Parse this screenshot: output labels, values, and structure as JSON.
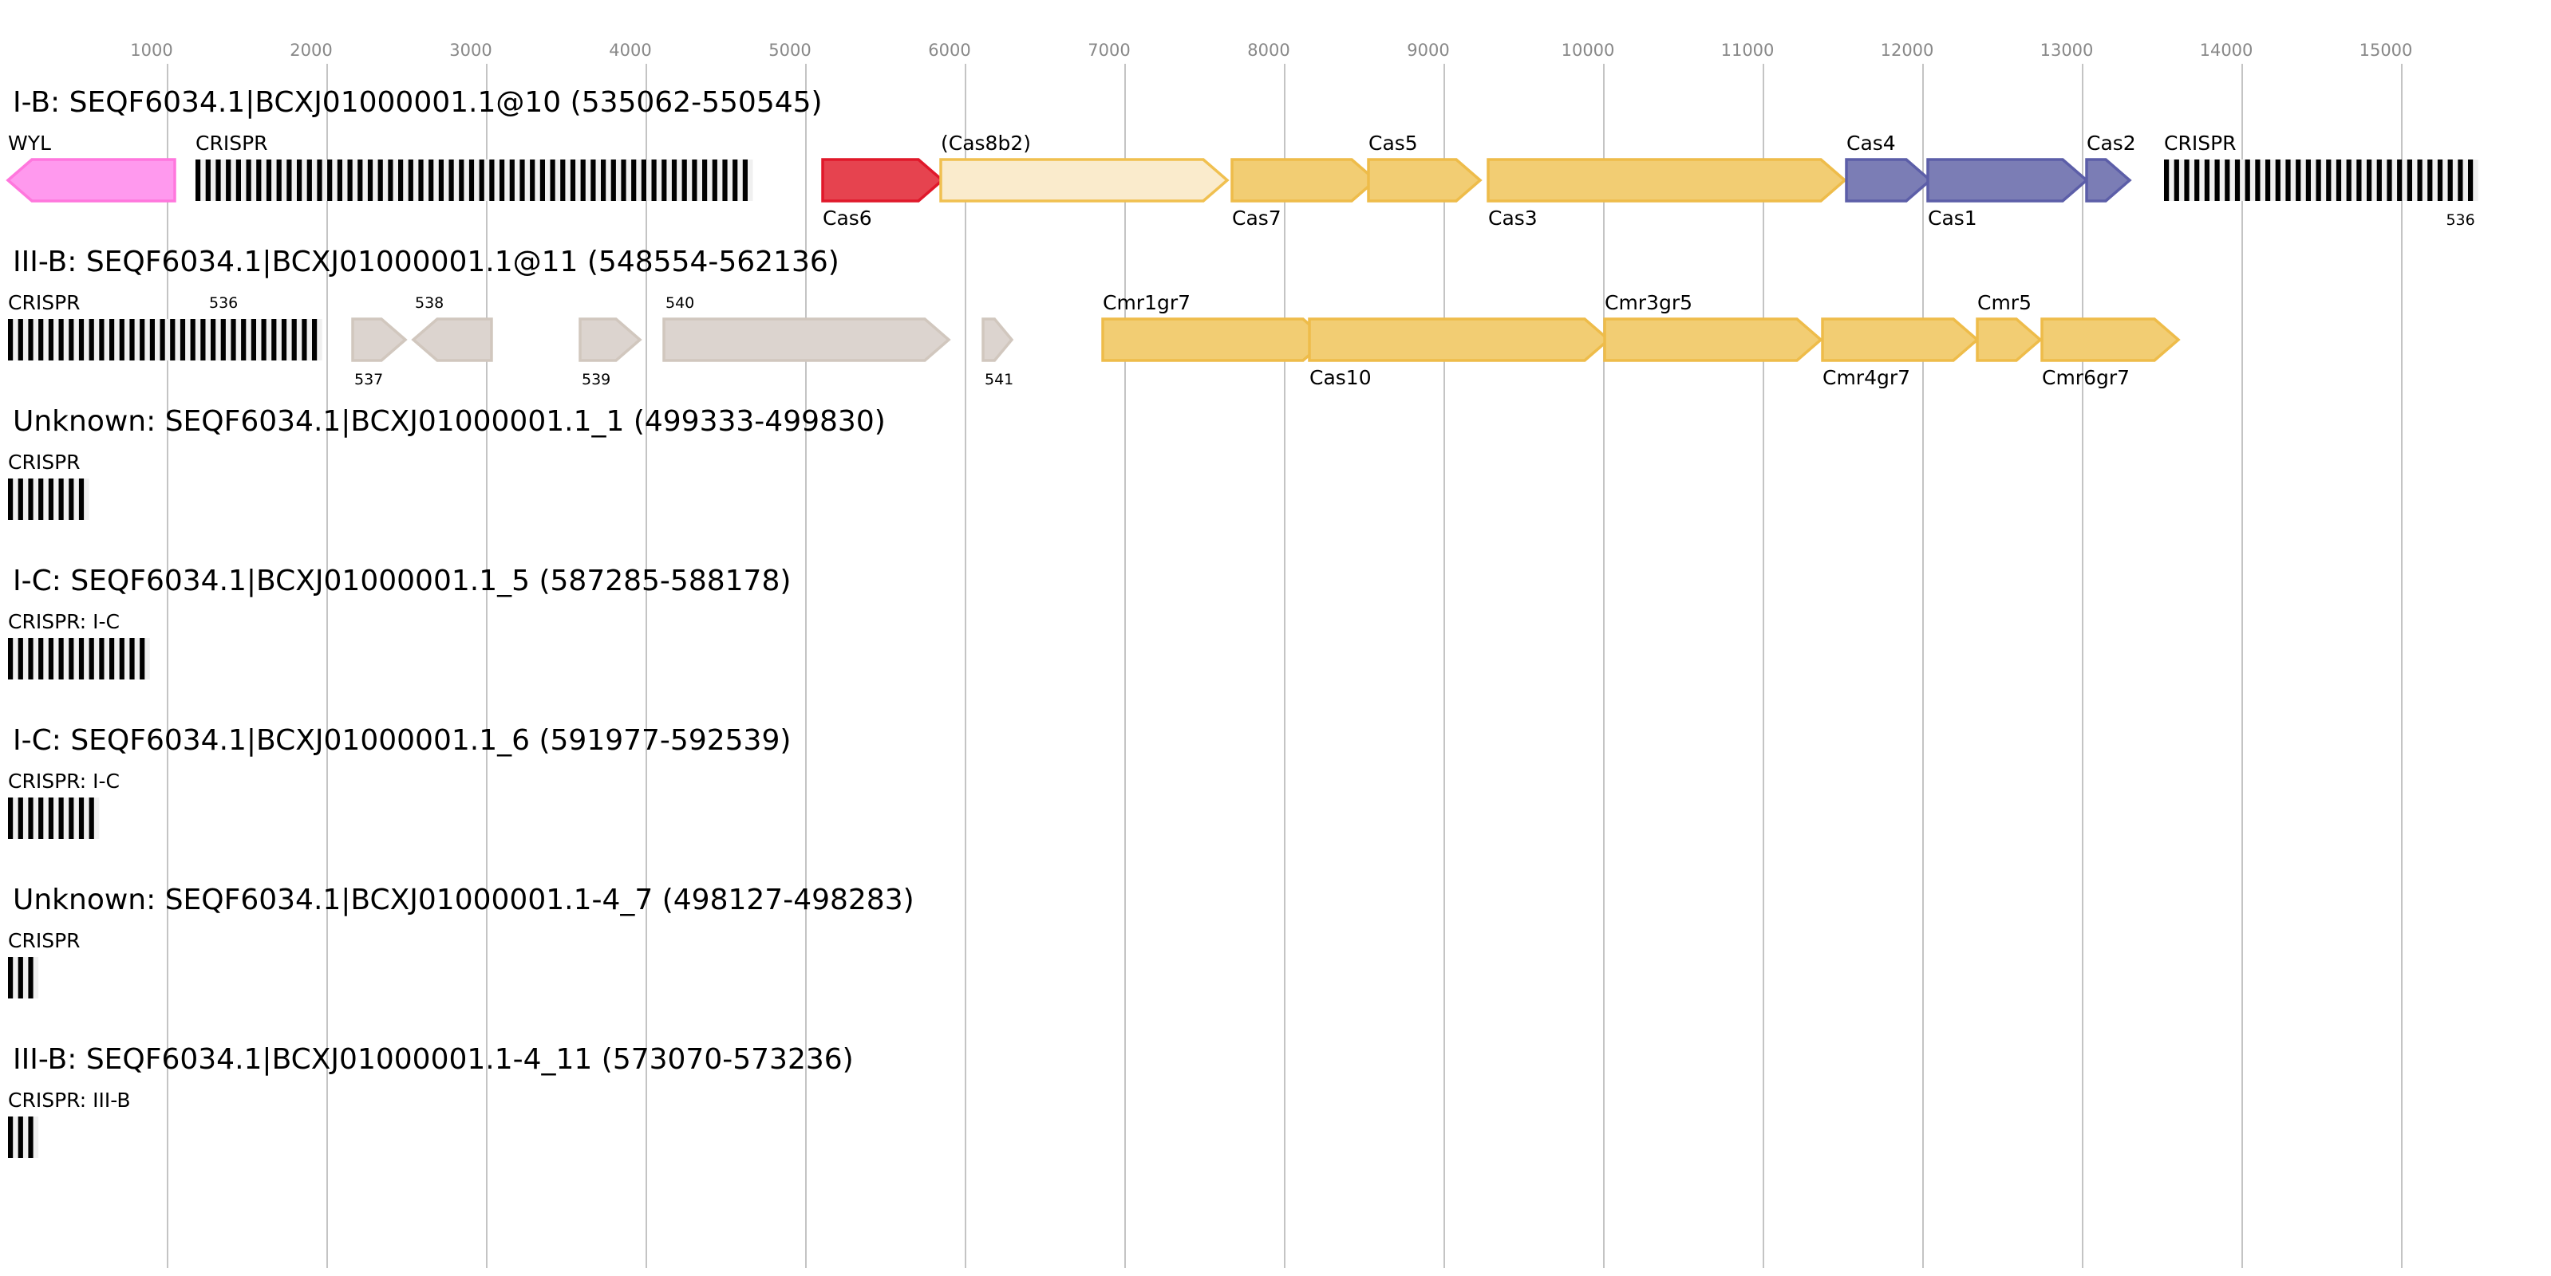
{
  "chart_data": {
    "type": "gene-cluster-diagram",
    "x_axis": {
      "unit": "bp",
      "ticks": [
        1000,
        2000,
        3000,
        4000,
        5000,
        6000,
        7000,
        8000,
        9000,
        10000,
        11000,
        12000,
        13000,
        14000,
        15000
      ],
      "grid": true
    },
    "colors": {
      "pink": {
        "fill": "#ff99ee",
        "stroke": "#ff77dd"
      },
      "red": {
        "fill": "#e6434f",
        "stroke": "#e0182a"
      },
      "light": {
        "fill": "#faebcc",
        "stroke": "#f0c050"
      },
      "yellow": {
        "fill": "#f2cd73",
        "stroke": "#eebc4a"
      },
      "purple": {
        "fill": "#7b7db5",
        "stroke": "#5c5ea8"
      },
      "gray": {
        "fill": "#dcd4cf",
        "stroke": "#d1c7be"
      },
      "crispr_bar": "#000000",
      "crispr_gap": "#f0f0f0"
    },
    "rows": [
      {
        "title": "I-B: SEQF6034.1|BCXJ01000001.1@10 (535062-550545)",
        "features": [
          {
            "type": "gene",
            "label": "WYL",
            "start": 0,
            "end": 1045,
            "strand": "-",
            "color": "pink",
            "label_pos": "above"
          },
          {
            "type": "crispr",
            "label": "CRISPR",
            "start": 1175,
            "repeats": 55,
            "label_pos": "above"
          },
          {
            "type": "gene",
            "label": "Cas6",
            "start": 5105,
            "end": 5855,
            "strand": "+",
            "color": "red",
            "label_pos": "below"
          },
          {
            "type": "gene",
            "label": "(Cas8b2)",
            "start": 5845,
            "end": 7640,
            "strand": "+",
            "color": "light",
            "label_pos": "above"
          },
          {
            "type": "gene",
            "label": "Cas7",
            "start": 7670,
            "end": 8570,
            "strand": "+",
            "color": "yellow",
            "label_pos": "below"
          },
          {
            "type": "gene",
            "label": "Cas5",
            "start": 8525,
            "end": 9225,
            "strand": "+",
            "color": "yellow",
            "label_pos": "above"
          },
          {
            "type": "gene",
            "label": "Cas3",
            "start": 9275,
            "end": 11510,
            "strand": "+",
            "color": "yellow",
            "label_pos": "below"
          },
          {
            "type": "gene",
            "label": "Cas4",
            "start": 11520,
            "end": 12045,
            "strand": "+",
            "color": "purple",
            "label_pos": "above"
          },
          {
            "type": "gene",
            "label": "Cas1",
            "start": 12030,
            "end": 13025,
            "strand": "+",
            "color": "purple",
            "label_pos": "below"
          },
          {
            "type": "gene",
            "label": "Cas2",
            "start": 13025,
            "end": 13295,
            "strand": "+",
            "color": "purple",
            "label_pos": "above"
          },
          {
            "type": "crispr",
            "label": "CRISPR",
            "start": 13510,
            "repeats": 31,
            "label_pos": "above",
            "sublabel": "536",
            "sublabel_pos": "below"
          }
        ]
      },
      {
        "title": "III-B: SEQF6034.1|BCXJ01000001.1@11 (548554-562136)",
        "features": [
          {
            "type": "crispr",
            "label": "CRISPR",
            "start": 0,
            "repeats": 31,
            "label_pos": "above",
            "sublabel": "536",
            "sublabel_pos": "above"
          },
          {
            "type": "gene",
            "label": "537",
            "start": 2160,
            "end": 2490,
            "strand": "+",
            "color": "gray",
            "label_pos": "below",
            "small": true
          },
          {
            "type": "gene",
            "label": "538",
            "start": 2540,
            "end": 3030,
            "strand": "-",
            "color": "gray",
            "label_pos": "above",
            "small": true
          },
          {
            "type": "gene",
            "label": "539",
            "start": 3585,
            "end": 3960,
            "strand": "+",
            "color": "gray",
            "label_pos": "below",
            "small": true
          },
          {
            "type": "gene",
            "label": "540",
            "start": 4110,
            "end": 5895,
            "strand": "+",
            "color": "gray",
            "label_pos": "above",
            "small": true
          },
          {
            "type": "gene",
            "label": "541",
            "start": 6110,
            "end": 6290,
            "strand": "+",
            "color": "gray",
            "label_pos": "below",
            "small": true
          },
          {
            "type": "gene",
            "label": "Cmr1gr7",
            "start": 6860,
            "end": 8265,
            "strand": "+",
            "color": "yellow",
            "label_pos": "above"
          },
          {
            "type": "gene",
            "label": "Cas10",
            "start": 8155,
            "end": 10030,
            "strand": "+",
            "color": "yellow",
            "label_pos": "below"
          },
          {
            "type": "gene",
            "label": "Cmr3gr5",
            "start": 10005,
            "end": 11360,
            "strand": "+",
            "color": "yellow",
            "label_pos": "above"
          },
          {
            "type": "gene",
            "label": "Cmr4gr7",
            "start": 11370,
            "end": 12340,
            "strand": "+",
            "color": "yellow",
            "label_pos": "below"
          },
          {
            "type": "gene",
            "label": "Cmr5",
            "start": 12340,
            "end": 12735,
            "strand": "+",
            "color": "yellow",
            "label_pos": "above"
          },
          {
            "type": "gene",
            "label": "Cmr6gr7",
            "start": 12745,
            "end": 13600,
            "strand": "+",
            "color": "yellow",
            "label_pos": "below"
          }
        ]
      },
      {
        "title": "Unknown: SEQF6034.1|BCXJ01000001.1_1 (499333-499830)",
        "features": [
          {
            "type": "crispr",
            "label": "CRISPR",
            "start": 0,
            "repeats": 8,
            "label_pos": "above"
          }
        ]
      },
      {
        "title": "I-C: SEQF6034.1|BCXJ01000001.1_5 (587285-588178)",
        "features": [
          {
            "type": "crispr",
            "label": "CRISPR: I-C",
            "start": 0,
            "repeats": 14,
            "label_pos": "above"
          }
        ]
      },
      {
        "title": "I-C: SEQF6034.1|BCXJ01000001.1_6 (591977-592539)",
        "features": [
          {
            "type": "crispr",
            "label": "CRISPR: I-C",
            "start": 0,
            "repeats": 9,
            "label_pos": "above"
          }
        ]
      },
      {
        "title": "Unknown: SEQF6034.1|BCXJ01000001.1-4_7 (498127-498283)",
        "features": [
          {
            "type": "crispr",
            "label": "CRISPR",
            "start": 0,
            "repeats": 3,
            "label_pos": "above"
          }
        ]
      },
      {
        "title": "III-B: SEQF6034.1|BCXJ01000001.1-4_11 (573070-573236)",
        "features": [
          {
            "type": "crispr",
            "label": "CRISPR: III-B",
            "start": 0,
            "repeats": 3,
            "label_pos": "above"
          }
        ]
      }
    ]
  }
}
